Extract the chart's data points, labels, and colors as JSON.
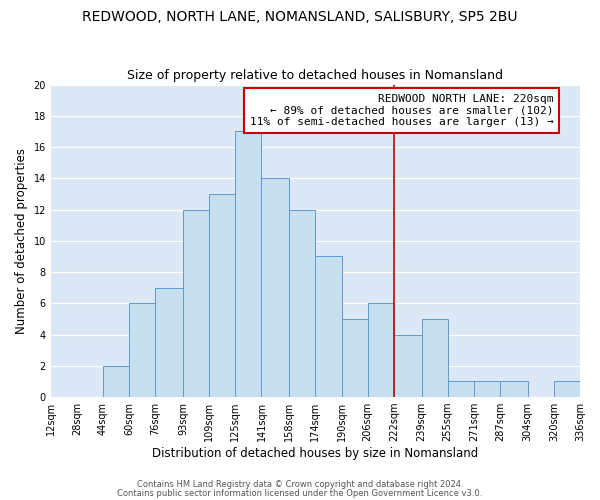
{
  "title": "REDWOOD, NORTH LANE, NOMANSLAND, SALISBURY, SP5 2BU",
  "subtitle": "Size of property relative to detached houses in Nomansland",
  "xlabel": "Distribution of detached houses by size in Nomansland",
  "ylabel": "Number of detached properties",
  "footer_line1": "Contains HM Land Registry data © Crown copyright and database right 2024.",
  "footer_line2": "Contains public sector information licensed under the Open Government Licence v3.0.",
  "bin_edges": [
    12,
    28,
    44,
    60,
    76,
    93,
    109,
    125,
    141,
    158,
    174,
    190,
    206,
    222,
    239,
    255,
    271,
    287,
    304,
    320,
    336
  ],
  "bin_labels": [
    "12sqm",
    "28sqm",
    "44sqm",
    "60sqm",
    "76sqm",
    "93sqm",
    "109sqm",
    "125sqm",
    "141sqm",
    "158sqm",
    "174sqm",
    "190sqm",
    "206sqm",
    "222sqm",
    "239sqm",
    "255sqm",
    "271sqm",
    "287sqm",
    "304sqm",
    "320sqm",
    "336sqm"
  ],
  "counts": [
    0,
    0,
    2,
    6,
    7,
    12,
    13,
    17,
    14,
    12,
    9,
    5,
    6,
    4,
    5,
    1,
    1,
    1,
    0,
    1
  ],
  "bar_color": "#c8dff0",
  "bar_edge_color": "#5b9bd5",
  "reference_line_x": 222,
  "reference_line_color": "#cc0000",
  "annotation_title": "REDWOOD NORTH LANE: 220sqm",
  "annotation_line1": "← 89% of detached houses are smaller (102)",
  "annotation_line2": "11% of semi-detached houses are larger (13) →",
  "ylim": [
    0,
    20
  ],
  "yticks": [
    0,
    2,
    4,
    6,
    8,
    10,
    12,
    14,
    16,
    18,
    20
  ],
  "plot_bg_color": "#dce8f5",
  "figure_bg_color": "#ffffff",
  "grid_color": "#ffffff",
  "title_fontsize": 10,
  "subtitle_fontsize": 9,
  "axis_label_fontsize": 8.5,
  "tick_fontsize": 7,
  "annotation_fontsize": 8,
  "footer_fontsize": 6
}
